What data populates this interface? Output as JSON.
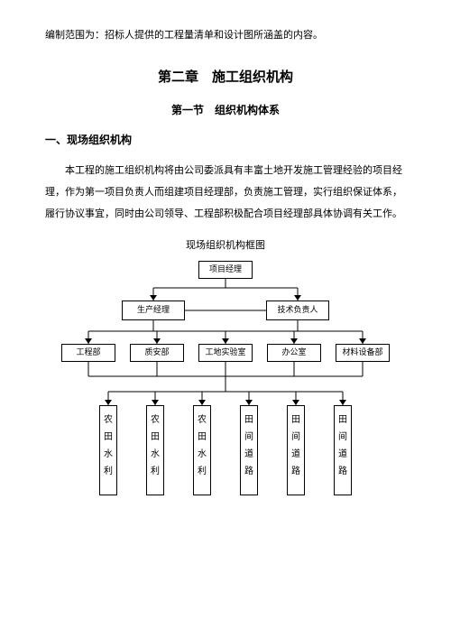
{
  "intro": "编制范围为：招标人提供的工程量清单和设计图所涵盖的内容。",
  "chapter": "第二章　施工组织机构",
  "section": "第一节　组织机构体系",
  "sub1": "一、现场组织机构",
  "para1": "本工程的施工组织机构将由公司委派具有丰富土地开发施工管理经验的项目经理，作为第一项目负责人而组建项目经理部，负责施工管理，实行组织保证体系，履行协议事宜，同时由公司领导、工程部积极配合项目经理部具体协调有关工作。",
  "caption": "现场组织机构框图",
  "chart": {
    "type": "tree",
    "background_color": "#ffffff",
    "line_color": "#000000",
    "border_color": "#000000",
    "font_size": 9,
    "top": {
      "label": "项目经理"
    },
    "level2": [
      {
        "label": "生产经理"
      },
      {
        "label": "技术负责人"
      }
    ],
    "level3": [
      {
        "label": "工程部"
      },
      {
        "label": "质安部"
      },
      {
        "label": "工地实验室"
      },
      {
        "label": "办公室"
      },
      {
        "label": "材料设备部"
      }
    ],
    "leaves": [
      {
        "chars": [
          "农",
          "田",
          "水",
          "利"
        ]
      },
      {
        "chars": [
          "农",
          "田",
          "水",
          "利"
        ]
      },
      {
        "chars": [
          "农",
          "田",
          "水",
          "利"
        ]
      },
      {
        "chars": [
          "田",
          "间",
          "道",
          "路"
        ]
      },
      {
        "chars": [
          "田",
          "间",
          "道",
          "路"
        ]
      },
      {
        "chars": [
          "田",
          "间",
          "道",
          "路"
        ]
      }
    ]
  }
}
